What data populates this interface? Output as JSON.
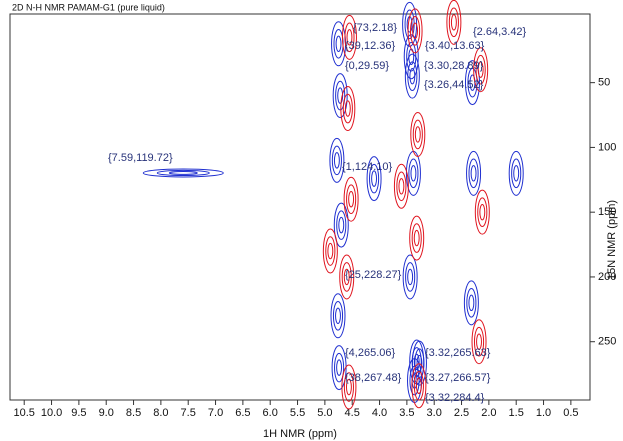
{
  "chart_data": {
    "type": "contour",
    "title": "2D N-H NMR  PAMAM-G1 (pure liquid)",
    "x_label": "1H NMR (ppm)",
    "y_label": "15N NMR (ppm)",
    "xlim": [
      10.76,
      0.15
    ],
    "ylim": [
      -3,
      295
    ],
    "xticks": [
      10.5,
      {
        "value": 10,
        "label": "10.0"
      },
      9.5,
      {
        "value": 9,
        "label": "9.0"
      },
      8.5,
      {
        "value": 8,
        "label": "8.0"
      },
      7.5,
      {
        "value": 7,
        "label": "7.0"
      },
      6.5,
      {
        "value": 6,
        "label": "6.0"
      },
      5.5,
      {
        "value": 5,
        "label": "5.0"
      },
      4.5,
      {
        "value": 4,
        "label": "4.0"
      },
      3.5,
      {
        "value": 3,
        "label": "3.0"
      },
      2.5,
      {
        "value": 2,
        "label": "2.0"
      },
      1.5,
      {
        "value": 1,
        "label": "1.0"
      },
      0.5
    ],
    "yticks": [
      50,
      100,
      150,
      200,
      250
    ],
    "series": [
      {
        "color": "#1f2fd0",
        "x": [
          7.59,
          4.75,
          4.72,
          4.78,
          4.7,
          4.76,
          4.74,
          3.45,
          3.42,
          3.4,
          3.38,
          3.44,
          3.36,
          2.3,
          2.28,
          2.32,
          4.1,
          3.32,
          3.27,
          1.5
        ],
        "values": [
          119.72,
          20,
          60,
          110,
          160,
          230,
          270,
          5,
          30,
          45,
          120,
          200,
          280,
          50,
          120,
          220,
          124.1,
          265.63,
          266.57,
          120
        ]
      },
      {
        "color": "#e0141e",
        "x": [
          4.55,
          4.58,
          4.52,
          4.6,
          4.56,
          3.35,
          3.3,
          3.32,
          3.28,
          2.15,
          2.12,
          2.18,
          2.64,
          3.6,
          4.9
        ],
        "values": [
          15,
          70,
          140,
          200,
          285,
          10,
          90,
          170,
          284,
          40,
          150,
          250,
          3.42,
          130,
          180
        ]
      }
    ],
    "annotations": [
      "{7.59,119.72}",
      "{1,124.10}",
      "{73,2.18}",
      "{2.64,3.42}",
      "{39,12.36}",
      "{3.40,13.63}",
      "{0,29.59}",
      "{3.30,28.89}",
      "{3.26,44.52}",
      "{25,228.27}",
      "{4,265.06}",
      "{3.32,265.63}",
      "{38,267.48}",
      "{3.27,266.57}",
      "{3.32,284.4}"
    ]
  }
}
